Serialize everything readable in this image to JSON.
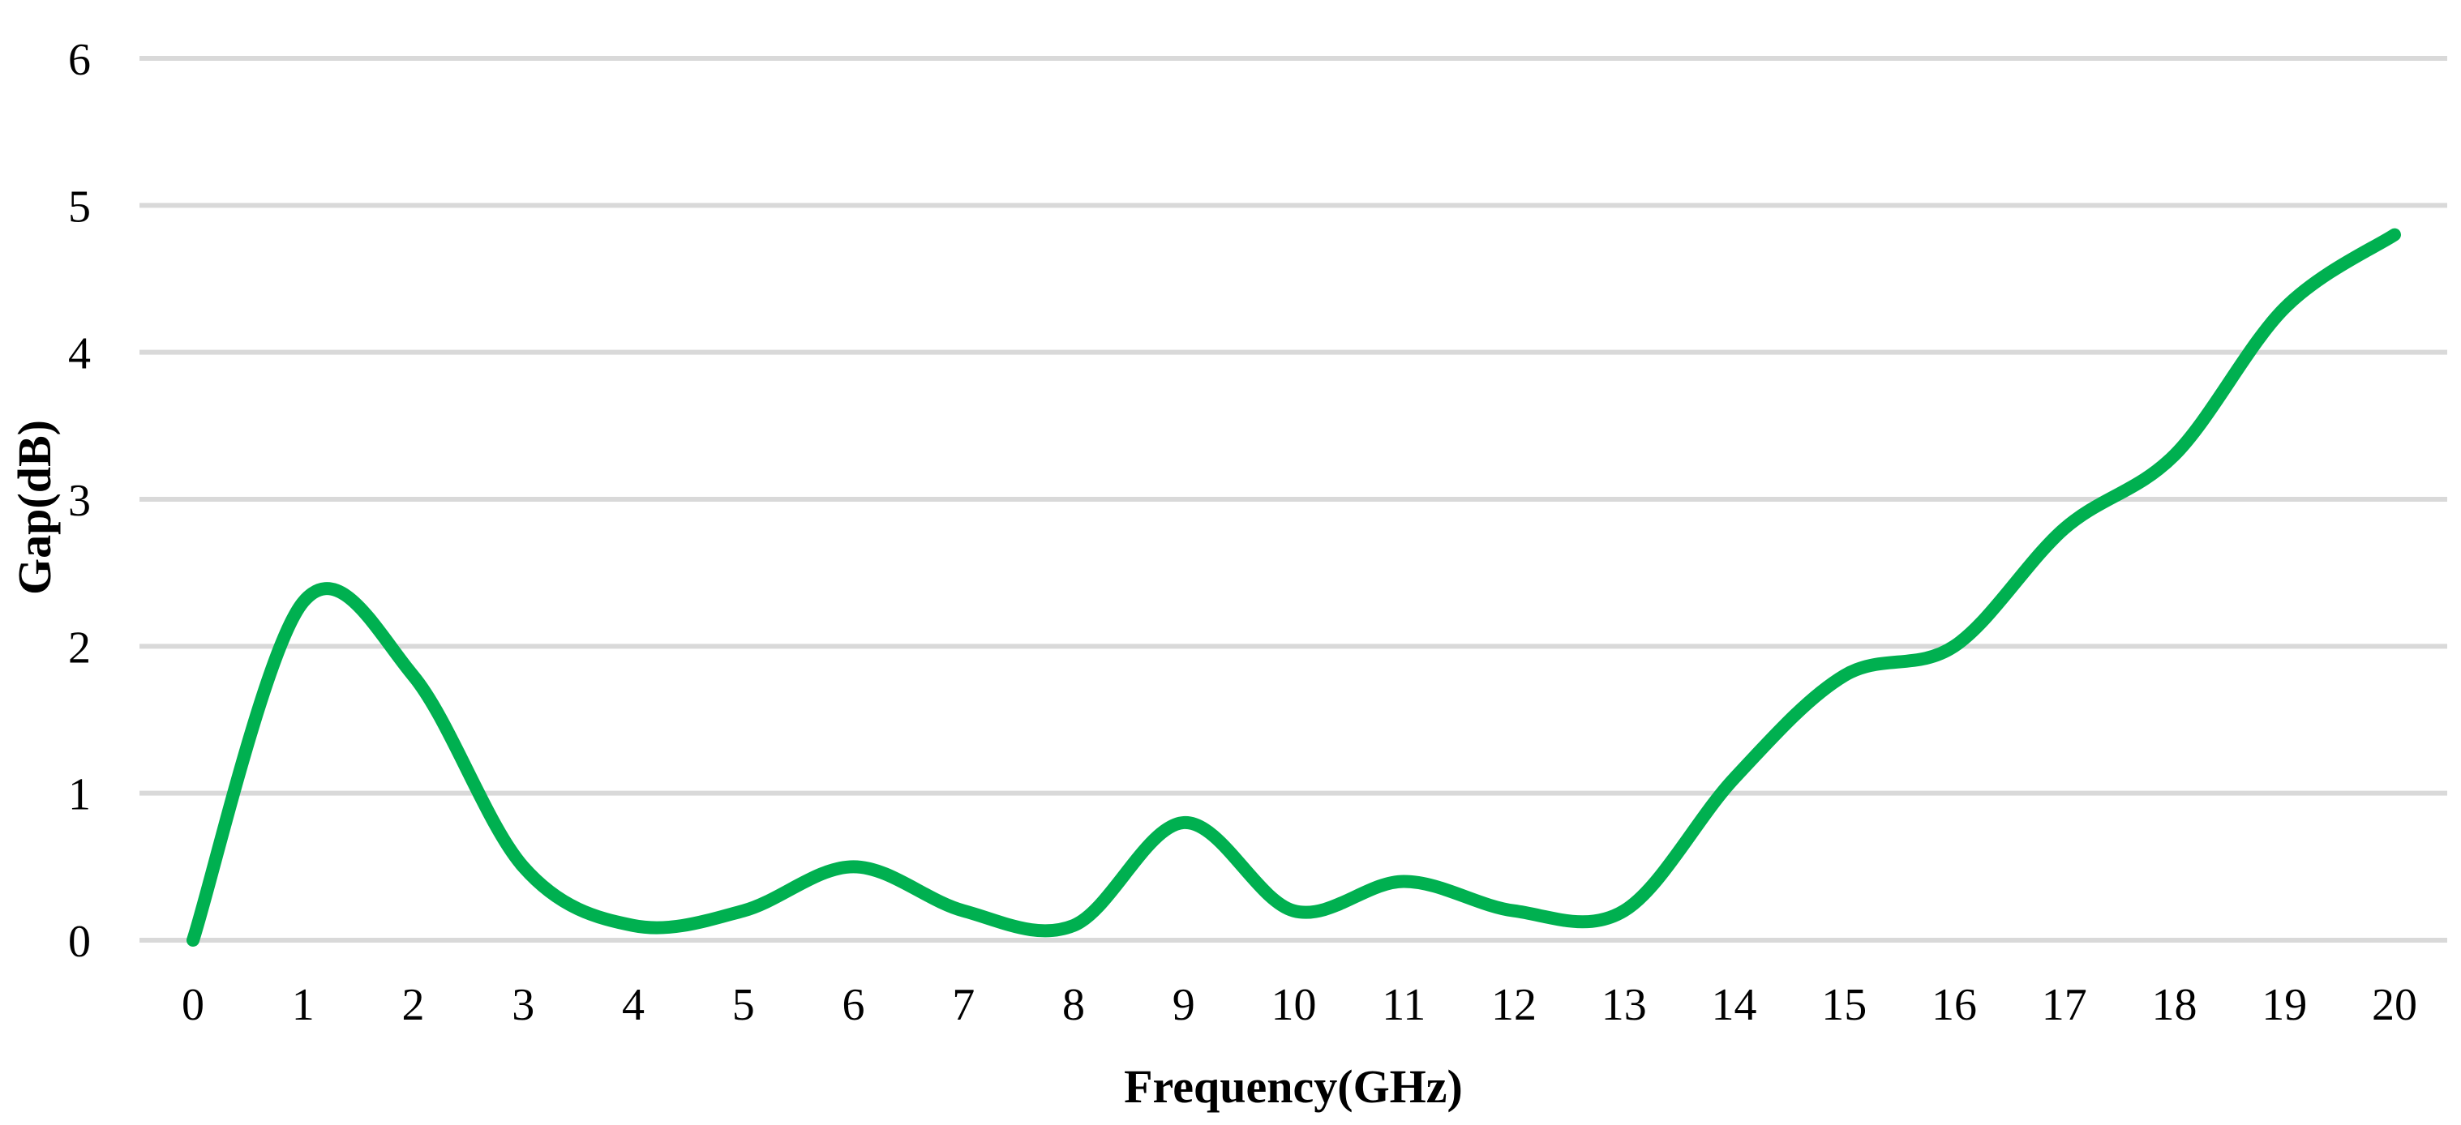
{
  "chart_data": {
    "type": "line",
    "title": "",
    "xlabel": "Frequency(GHz)",
    "ylabel": "Gap(dB)",
    "x": [
      0,
      1,
      2,
      3,
      4,
      5,
      6,
      7,
      8,
      9,
      10,
      11,
      12,
      13,
      14,
      15,
      16,
      17,
      18,
      19,
      20
    ],
    "series": [
      {
        "values": [
          0,
          2.3,
          1.8,
          0.5,
          0.1,
          0.2,
          0.5,
          0.2,
          0.1,
          0.8,
          0.2,
          0.4,
          0.2,
          0.2,
          1.1,
          1.8,
          2.0,
          2.8,
          3.3,
          4.3,
          4.8
        ],
        "color": "#00b050",
        "smooth": true
      }
    ],
    "xlim": [
      0,
      20
    ],
    "ylim": [
      0,
      6
    ],
    "xticks": [
      "0",
      "1",
      "2",
      "3",
      "4",
      "5",
      "6",
      "7",
      "8",
      "9",
      "10",
      "11",
      "12",
      "13",
      "14",
      "15",
      "16",
      "17",
      "18",
      "19",
      "20"
    ],
    "yticks": [
      "0",
      "1",
      "2",
      "3",
      "4",
      "5",
      "6"
    ],
    "grid": true,
    "gridline_color": "#d9d9d9",
    "legend": "none"
  }
}
